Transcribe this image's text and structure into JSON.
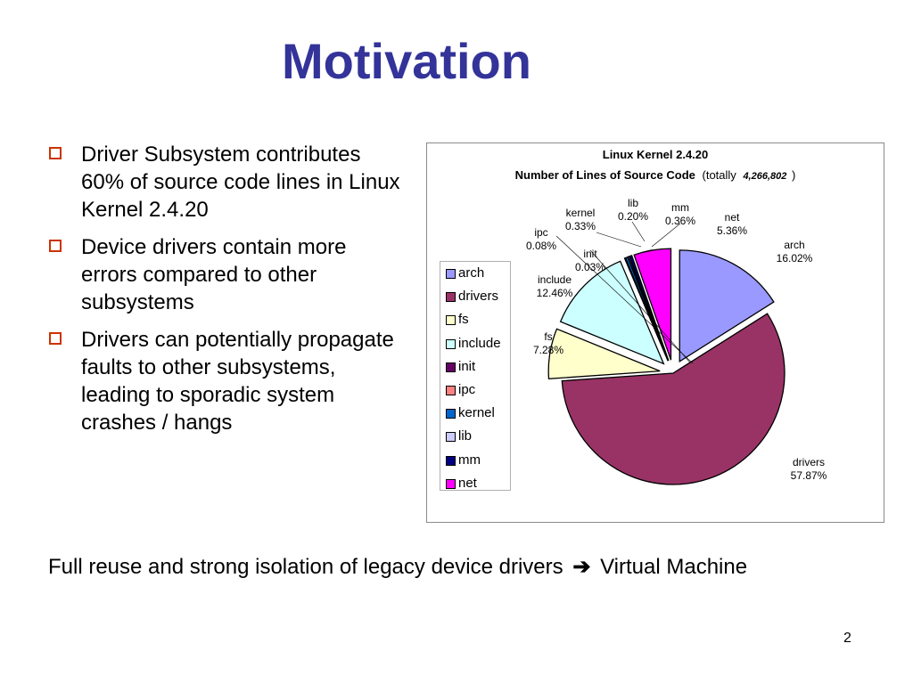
{
  "slide": {
    "title": "Motivation",
    "bullets": [
      "Driver Subsystem contributes 60% of source code lines in Linux Kernel 2.4.20",
      "Device drivers contain more errors compared to other subsystems",
      "Drivers can potentially propagate faults to other subsystems, leading to sporadic system crashes / hangs"
    ],
    "footer_before": "Full reuse and strong isolation of legacy device drivers",
    "footer_after": "Virtual Machine",
    "page_number": "2",
    "icons": {
      "bullet": "checkbox-bullet-icon",
      "footer_arrow": "right-arrow-icon"
    },
    "colors": {
      "title": "#333399",
      "bullet": "#cc3300"
    }
  },
  "chart_data": {
    "type": "pie",
    "title": "Linux Kernel 2.4.20",
    "subtitle_bold": "Number of Lines of Source Code",
    "subtitle_prefix": "(totally",
    "subtitle_total": "4,266,802",
    "subtitle_suffix": ")",
    "legend_position": "left",
    "slices": [
      {
        "label": "arch",
        "value": 16.02,
        "display": "16.02%",
        "color": "#9999ff",
        "exploded": true
      },
      {
        "label": "drivers",
        "value": 57.87,
        "display": "57.87%",
        "color": "#993366",
        "exploded": false
      },
      {
        "label": "fs",
        "value": 7.28,
        "display": "7.28%",
        "color": "#ffffcc",
        "exploded": true
      },
      {
        "label": "include",
        "value": 12.46,
        "display": "12.46%",
        "color": "#ccffff",
        "exploded": true
      },
      {
        "label": "init",
        "value": 0.03,
        "display": "0.03%",
        "color": "#660066",
        "exploded": true
      },
      {
        "label": "ipc",
        "value": 0.08,
        "display": "0.08%",
        "color": "#ff8080",
        "exploded": true
      },
      {
        "label": "kernel",
        "value": 0.33,
        "display": "0.33%",
        "color": "#0066cc",
        "exploded": true
      },
      {
        "label": "lib",
        "value": 0.2,
        "display": "0.20%",
        "color": "#ccccff",
        "exploded": true
      },
      {
        "label": "mm",
        "value": 0.36,
        "display": "0.36%",
        "color": "#000080",
        "exploded": true
      },
      {
        "label": "net",
        "value": 5.36,
        "display": "5.36%",
        "color": "#ff00ff",
        "exploded": true
      }
    ]
  }
}
